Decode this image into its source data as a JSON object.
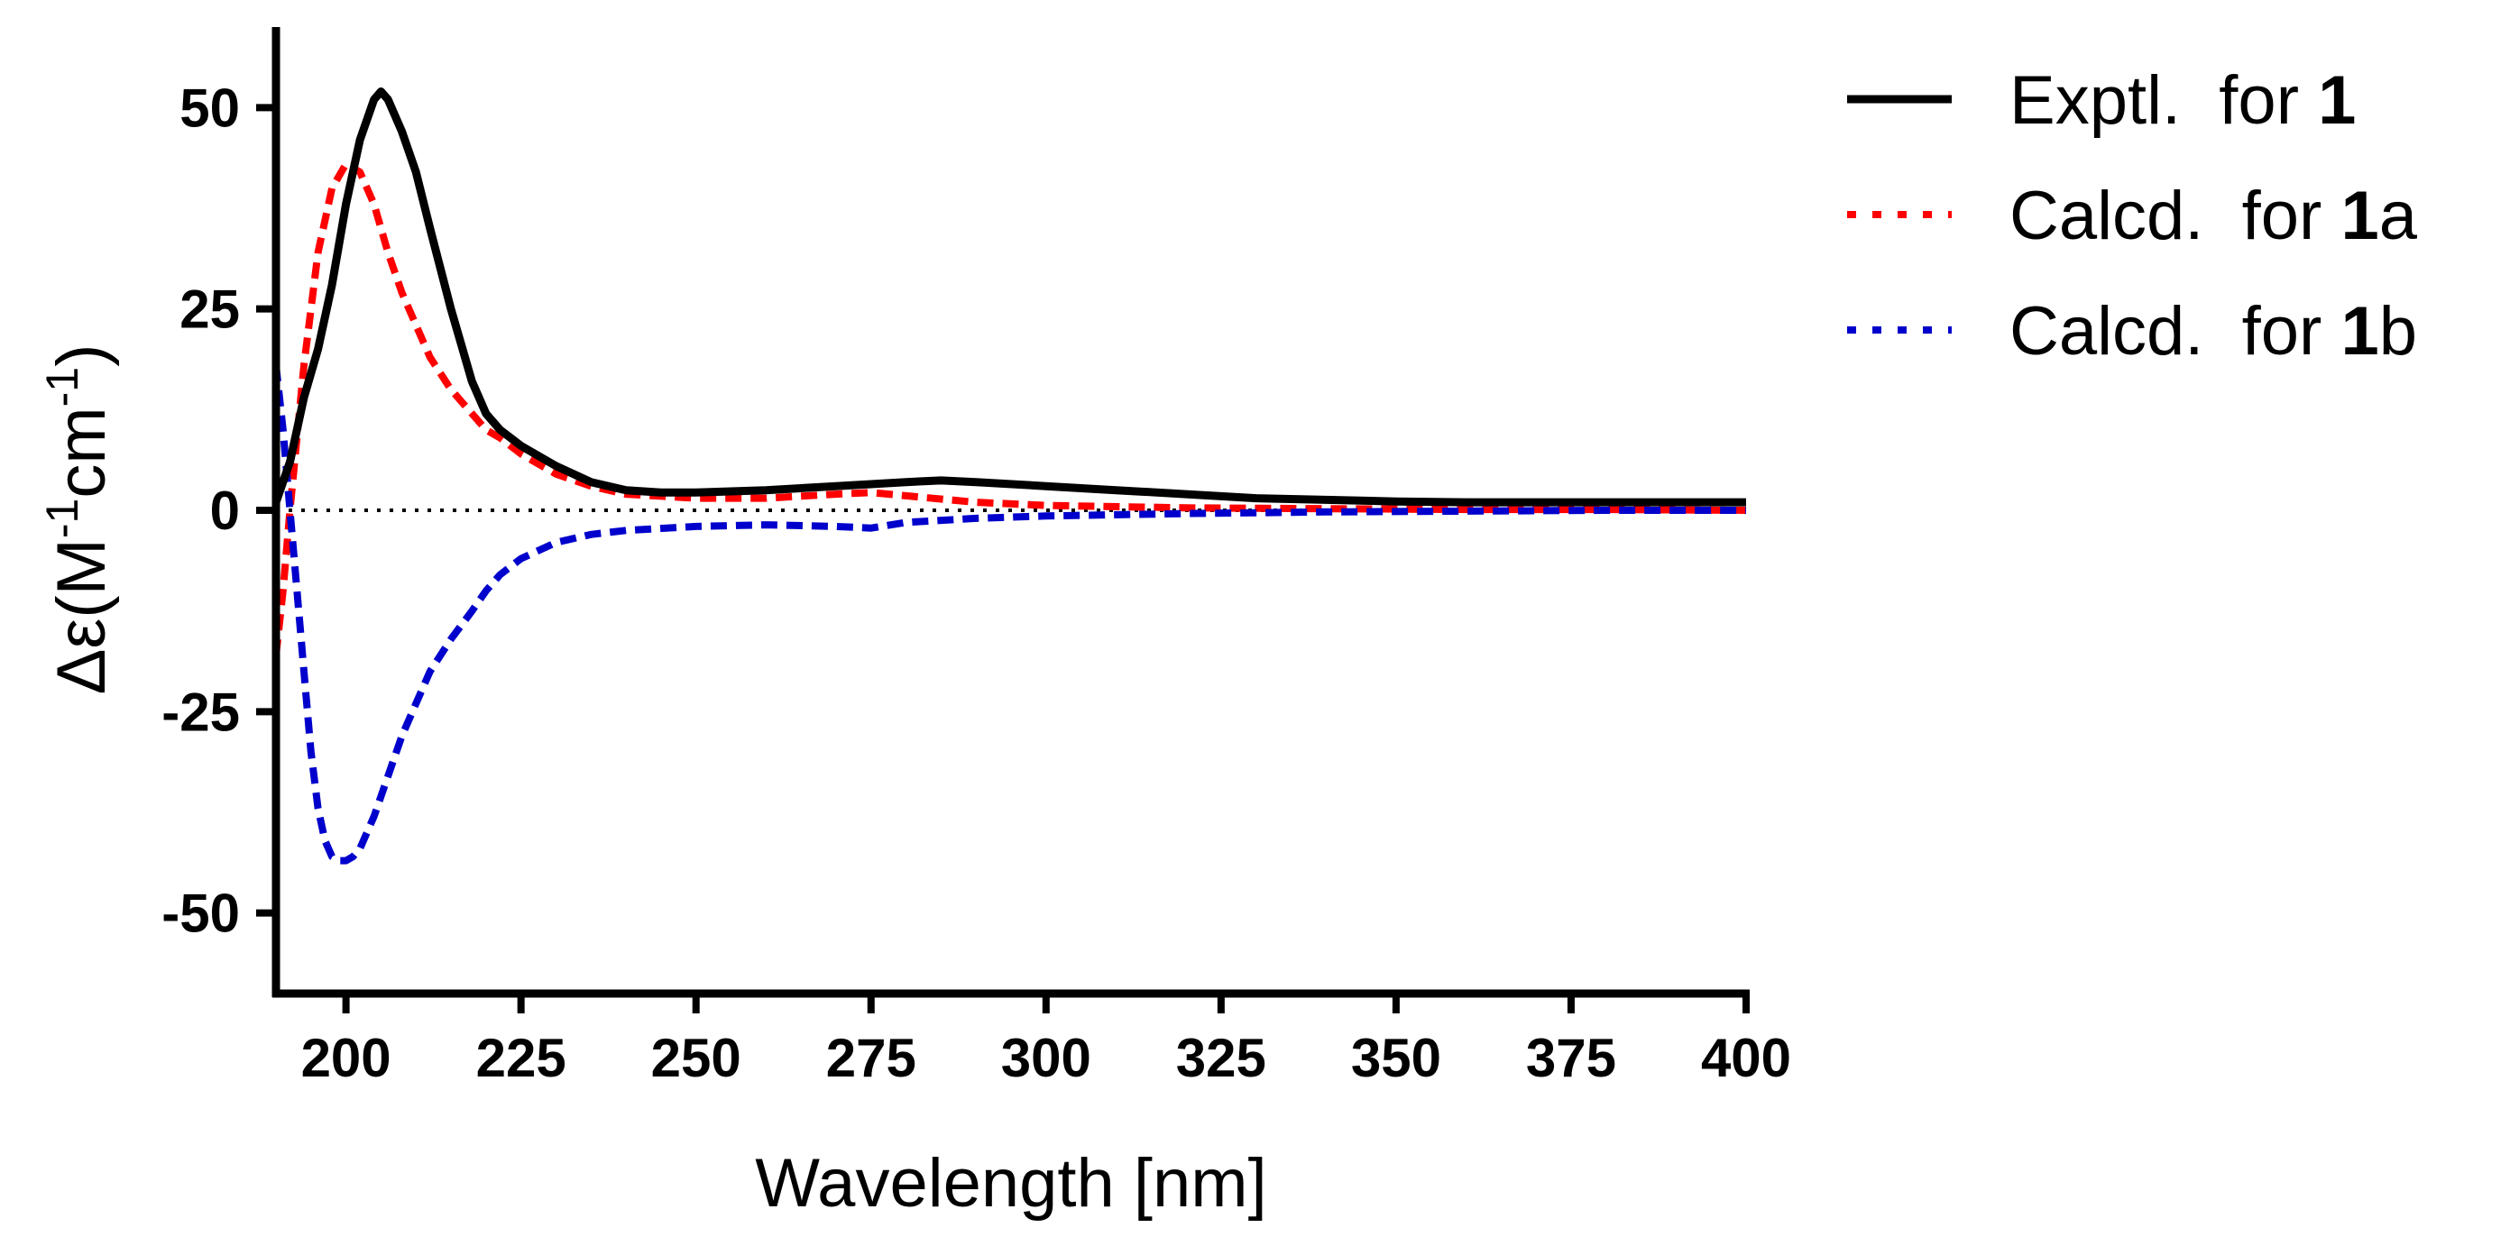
{
  "chart_data": {
    "type": "line",
    "xlabel": "Wavelength [nm]",
    "ylabel": "Δε(M-1cm-1)",
    "ylabel_parts": {
      "symbol": "Δε",
      "open": "(M",
      "sup1": "-1",
      "mid": "cm",
      "sup2": "-1",
      "close": ")"
    },
    "xlim": [
      190,
      400
    ],
    "ylim": [
      -60,
      60
    ],
    "xticks": [
      200,
      225,
      250,
      275,
      300,
      325,
      350,
      375,
      400
    ],
    "yticks": [
      -50,
      -25,
      0,
      25,
      50
    ],
    "xtick_labels": [
      "200",
      "225",
      "250",
      "275",
      "300",
      "325",
      "350",
      "375",
      "400"
    ],
    "ytick_labels": [
      "-50",
      "-25",
      "0",
      "25",
      "50"
    ],
    "zero_line": true,
    "grid": false,
    "legend": "outside-right",
    "series": [
      {
        "name": "Exptl.  for 1",
        "label_text": "Exptl.  for ",
        "label_bold": "1",
        "label_suffix": "",
        "color": "#000000",
        "dash": "solid",
        "x": [
          190,
          192,
          194,
          196,
          198,
          200,
          202,
          204,
          205,
          206,
          208,
          210,
          212,
          215,
          218,
          220,
          222,
          225,
          230,
          235,
          240,
          245,
          250,
          260,
          270,
          280,
          285,
          290,
          300,
          310,
          320,
          330,
          340,
          350,
          360,
          375,
          390,
          400
        ],
        "y": [
          1,
          6,
          14,
          20,
          28,
          38,
          46,
          51,
          52,
          51,
          47,
          42,
          35,
          25,
          16,
          12,
          10,
          8,
          5.5,
          3.5,
          2.5,
          2.2,
          2.2,
          2.5,
          3,
          3.5,
          3.7,
          3.5,
          3,
          2.5,
          2,
          1.5,
          1.3,
          1.1,
          1,
          1,
          1,
          1
        ]
      },
      {
        "name": "Calcd.  for 1a",
        "label_text": "Calcd.  for ",
        "label_bold": "1",
        "label_suffix": "a",
        "color": "#ff0000",
        "dash": "dotted",
        "x": [
          190,
          191,
          192,
          194,
          196,
          198,
          200,
          202,
          204,
          206,
          208,
          210,
          212,
          215,
          218,
          220,
          222,
          225,
          230,
          235,
          240,
          250,
          260,
          270,
          275,
          280,
          290,
          300,
          320,
          340,
          360,
          380,
          400
        ],
        "y": [
          -18,
          -10,
          0,
          18,
          32,
          40,
          43,
          42,
          38,
          32,
          27,
          23,
          19,
          15,
          12,
          10,
          9,
          7,
          4.5,
          3,
          2,
          1.5,
          1.5,
          2,
          2.2,
          1.8,
          1,
          0.6,
          0.3,
          0.2,
          0.1,
          0.1,
          0
        ]
      },
      {
        "name": "Calcd.  for 1b",
        "label_text": "Calcd.  for ",
        "label_bold": "1",
        "label_suffix": "b",
        "color": "#0000cc",
        "dash": "dotted",
        "x": [
          190,
          191,
          192,
          193,
          194,
          195,
          196,
          197,
          198,
          199,
          200,
          201,
          202,
          204,
          206,
          208,
          210,
          212,
          215,
          218,
          220,
          222,
          225,
          230,
          235,
          240,
          250,
          260,
          270,
          275,
          280,
          290,
          300,
          320,
          340,
          360,
          380,
          400
        ],
        "y": [
          18,
          10,
          0,
          -10,
          -20,
          -30,
          -37,
          -41,
          -43,
          -43.5,
          -43.5,
          -43,
          -42,
          -38,
          -33,
          -28,
          -24,
          -20,
          -16,
          -12.5,
          -10,
          -8,
          -6,
          -4,
          -3,
          -2.5,
          -2,
          -1.8,
          -2,
          -2.2,
          -1.5,
          -1,
          -0.7,
          -0.4,
          -0.2,
          -0.1,
          0,
          0
        ]
      }
    ]
  }
}
